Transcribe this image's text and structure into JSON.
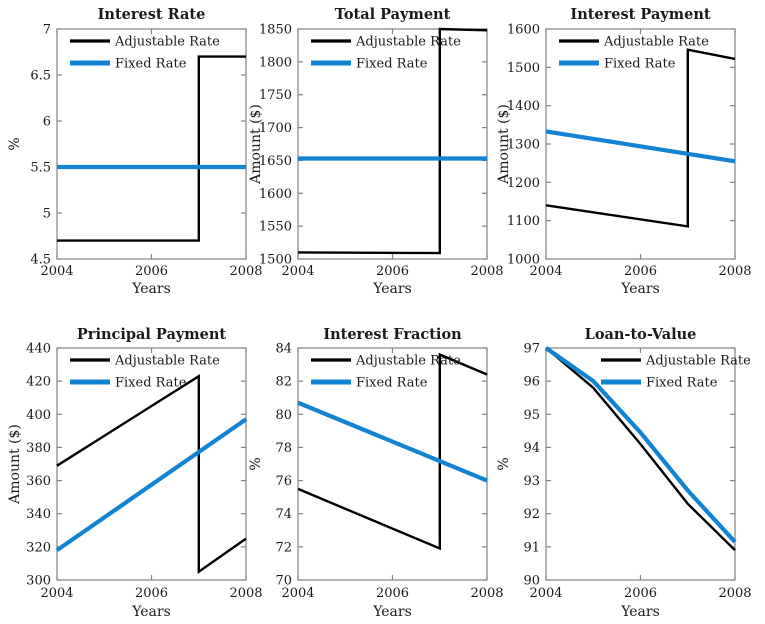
{
  "figure": {
    "background": "#ffffff",
    "series_labels": {
      "adjustable": "Adjustable Rate",
      "fixed": "Fixed Rate"
    }
  },
  "colors": {
    "adjustable": "#000000",
    "fixed": "#1283d2",
    "axis_box": "#828282",
    "text": "#1a1a1a"
  },
  "chart_data": [
    {
      "type": "line",
      "title": "Interest Rate",
      "xlabel": "Years",
      "ylabel": "%",
      "xlim": [
        2004,
        2008
      ],
      "ylim": [
        4.5,
        7
      ],
      "xticks": [
        2004,
        2006,
        2008
      ],
      "yticks": [
        4.5,
        5,
        5.5,
        6,
        6.5,
        7
      ],
      "grid": false,
      "legend_position": "upper-left",
      "series": [
        {
          "name": "Adjustable Rate",
          "key": "adjustable",
          "points": [
            [
              2004,
              4.7
            ],
            [
              2007,
              4.7
            ],
            [
              2007,
              6.7
            ],
            [
              2008,
              6.7
            ]
          ]
        },
        {
          "name": "Fixed Rate",
          "key": "fixed",
          "points": [
            [
              2004,
              5.5
            ],
            [
              2008,
              5.5
            ]
          ]
        }
      ]
    },
    {
      "type": "line",
      "title": "Total Payment",
      "xlabel": "Years",
      "ylabel": "Amount ($)",
      "xlim": [
        2004,
        2008
      ],
      "ylim": [
        1500,
        1850
      ],
      "xticks": [
        2004,
        2006,
        2008
      ],
      "yticks": [
        1500,
        1550,
        1600,
        1650,
        1700,
        1750,
        1800,
        1850
      ],
      "grid": false,
      "legend_position": "upper-left",
      "series": [
        {
          "name": "Adjustable Rate",
          "key": "adjustable",
          "points": [
            [
              2004,
              1510
            ],
            [
              2007,
              1509
            ],
            [
              2007,
              1850
            ],
            [
              2008,
              1848
            ]
          ]
        },
        {
          "name": "Fixed Rate",
          "key": "fixed",
          "points": [
            [
              2004,
              1653
            ],
            [
              2008,
              1653
            ]
          ]
        }
      ]
    },
    {
      "type": "line",
      "title": "Interest Payment",
      "xlabel": "Years",
      "ylabel": "Amount ($)",
      "xlim": [
        2004,
        2008
      ],
      "ylim": [
        1000,
        1600
      ],
      "xticks": [
        2004,
        2006,
        2008
      ],
      "yticks": [
        1000,
        1100,
        1200,
        1300,
        1400,
        1500,
        1600
      ],
      "grid": false,
      "legend_position": "upper-left",
      "series": [
        {
          "name": "Adjustable Rate",
          "key": "adjustable",
          "points": [
            [
              2004,
              1140
            ],
            [
              2007,
              1085
            ],
            [
              2007,
              1546
            ],
            [
              2008,
              1522
            ]
          ]
        },
        {
          "name": "Fixed Rate",
          "key": "fixed",
          "points": [
            [
              2004,
              1333
            ],
            [
              2008,
              1255
            ]
          ]
        }
      ]
    },
    {
      "type": "line",
      "title": "Principal Payment",
      "xlabel": "Years",
      "ylabel": "Amount ($)",
      "xlim": [
        2004,
        2008
      ],
      "ylim": [
        300,
        440
      ],
      "xticks": [
        2004,
        2006,
        2008
      ],
      "yticks": [
        300,
        320,
        340,
        360,
        380,
        400,
        420,
        440
      ],
      "grid": false,
      "legend_position": "upper-left",
      "series": [
        {
          "name": "Adjustable Rate",
          "key": "adjustable",
          "points": [
            [
              2004,
              369
            ],
            [
              2007,
              423
            ],
            [
              2007,
              305
            ],
            [
              2008,
              325
            ]
          ]
        },
        {
          "name": "Fixed Rate",
          "key": "fixed",
          "points": [
            [
              2004,
              318
            ],
            [
              2008,
              397
            ]
          ]
        }
      ]
    },
    {
      "type": "line",
      "title": "Interest Fraction",
      "xlabel": "Years",
      "ylabel": "%",
      "xlim": [
        2004,
        2008
      ],
      "ylim": [
        70,
        84
      ],
      "xticks": [
        2004,
        2006,
        2008
      ],
      "yticks": [
        70,
        72,
        74,
        76,
        78,
        80,
        82,
        84
      ],
      "grid": false,
      "legend_position": "upper-left",
      "series": [
        {
          "name": "Adjustable Rate",
          "key": "adjustable",
          "points": [
            [
              2004,
              75.5
            ],
            [
              2007,
              71.9
            ],
            [
              2007,
              83.6
            ],
            [
              2008,
              82.4
            ]
          ]
        },
        {
          "name": "Fixed Rate",
          "key": "fixed",
          "points": [
            [
              2004,
              80.7
            ],
            [
              2008,
              76.0
            ]
          ]
        }
      ]
    },
    {
      "type": "line",
      "title": "Loan-to-Value",
      "xlabel": "Years",
      "ylabel": "%",
      "xlim": [
        2004,
        2008
      ],
      "ylim": [
        90,
        97
      ],
      "xticks": [
        2004,
        2006,
        2008
      ],
      "yticks": [
        90,
        91,
        92,
        93,
        94,
        95,
        96,
        97
      ],
      "grid": false,
      "legend_position": "upper-middle",
      "series": [
        {
          "name": "Adjustable Rate",
          "key": "adjustable",
          "points": [
            [
              2004,
              97.0
            ],
            [
              2005,
              95.8
            ],
            [
              2006,
              94.1
            ],
            [
              2007,
              92.3
            ],
            [
              2008,
              90.9
            ]
          ]
        },
        {
          "name": "Fixed Rate",
          "key": "fixed",
          "points": [
            [
              2004,
              97.0
            ],
            [
              2005,
              96.0
            ],
            [
              2006,
              94.45
            ],
            [
              2007,
              92.7
            ],
            [
              2008,
              91.15
            ]
          ]
        }
      ]
    }
  ]
}
